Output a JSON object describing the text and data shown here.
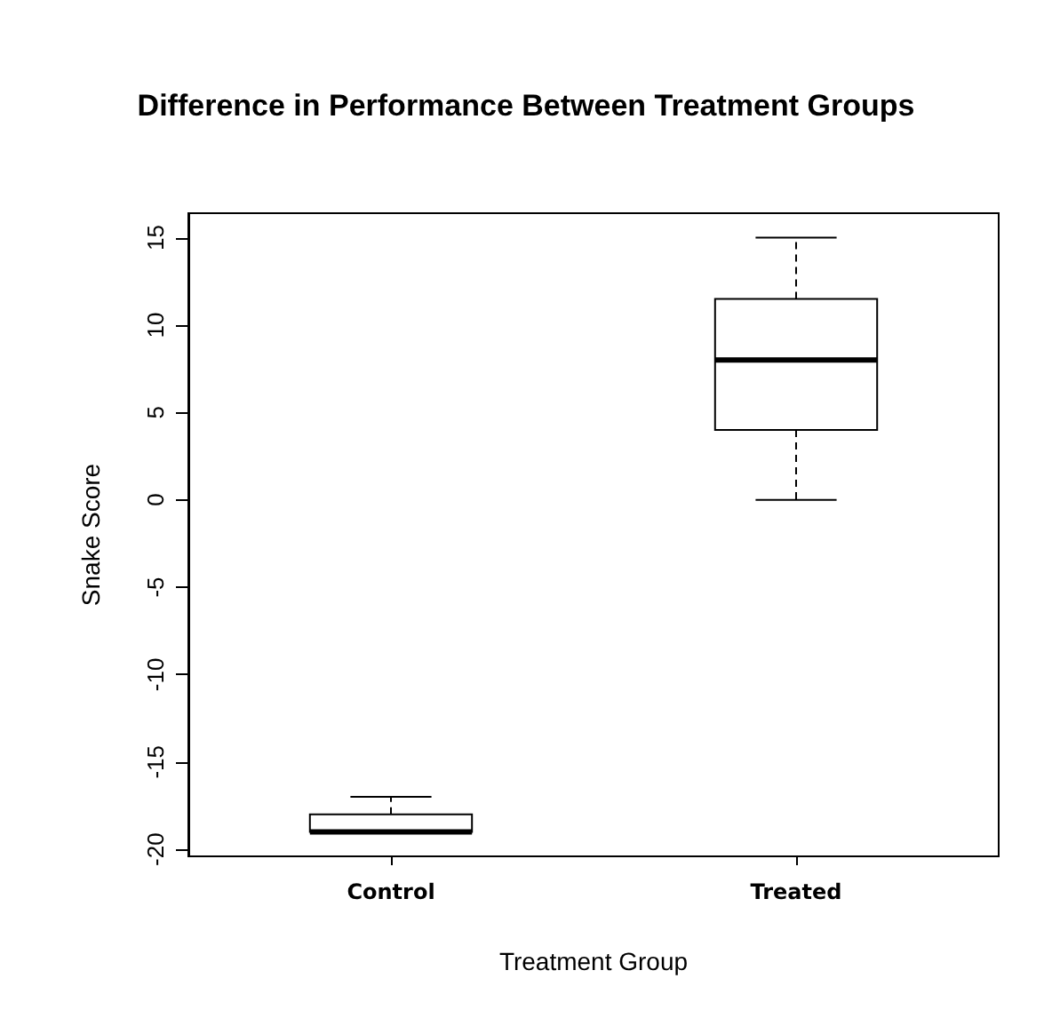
{
  "chart_data": {
    "type": "box",
    "title": "Difference in Performance Between Treatment Groups",
    "xlabel": "Treatment Group",
    "ylabel": "Snake Score",
    "categories": [
      "Control",
      "Treated"
    ],
    "boxes": [
      {
        "low": -19,
        "q1": -19,
        "median": -19,
        "q3": -18,
        "high": -17
      },
      {
        "low": 0,
        "q1": 4,
        "median": 8,
        "q3": 11.5,
        "high": 15
      }
    ],
    "color": "#000000",
    "ylim": [
      -20.4,
      16.4
    ],
    "yticks": [
      -20,
      -15,
      -10,
      -5,
      0,
      5,
      10,
      15
    ],
    "grid": false
  }
}
